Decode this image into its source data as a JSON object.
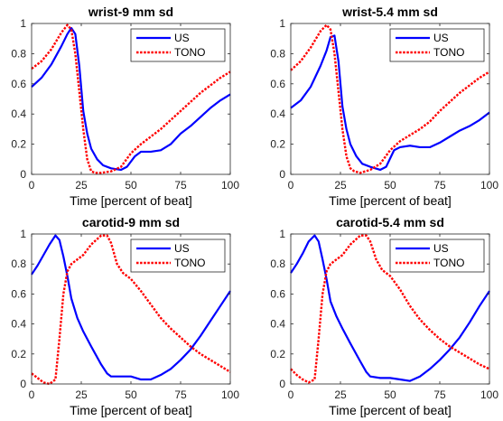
{
  "chart_data": [
    {
      "type": "line",
      "title": "wrist-9 mm sd",
      "xlabel": "Time [percent of beat]",
      "ylabel": "",
      "xlim": [
        0,
        100
      ],
      "ylim": [
        0,
        1
      ],
      "xticks": [
        "0",
        "25",
        "50",
        "75",
        "100"
      ],
      "yticks": [
        "0",
        "0.2",
        "0.4",
        "0.6",
        "0.8",
        "1"
      ],
      "legend_position": "top-right",
      "series": [
        {
          "name": "US",
          "color": "#0000ff",
          "style": "solid",
          "x": [
            0,
            5,
            10,
            15,
            18,
            20,
            22,
            24,
            26,
            28,
            30,
            33,
            36,
            40,
            45,
            48,
            52,
            55,
            60,
            65,
            70,
            75,
            80,
            85,
            90,
            95,
            100
          ],
          "y": [
            0.58,
            0.64,
            0.73,
            0.85,
            0.93,
            0.97,
            0.93,
            0.72,
            0.42,
            0.27,
            0.17,
            0.1,
            0.06,
            0.04,
            0.03,
            0.05,
            0.12,
            0.15,
            0.15,
            0.16,
            0.2,
            0.27,
            0.32,
            0.38,
            0.44,
            0.49,
            0.53
          ]
        },
        {
          "name": "TONO",
          "color": "#ff0000",
          "style": "dotted",
          "x": [
            0,
            5,
            10,
            15,
            18,
            20,
            22,
            24,
            26,
            28,
            30,
            32,
            35,
            40,
            45,
            50,
            55,
            60,
            65,
            70,
            75,
            80,
            85,
            90,
            95,
            100
          ],
          "y": [
            0.7,
            0.75,
            0.83,
            0.94,
            0.99,
            0.96,
            0.8,
            0.55,
            0.3,
            0.1,
            0.02,
            0.01,
            0.01,
            0.02,
            0.05,
            0.14,
            0.2,
            0.25,
            0.3,
            0.36,
            0.42,
            0.48,
            0.54,
            0.59,
            0.64,
            0.68
          ]
        }
      ]
    },
    {
      "type": "line",
      "title": "wrist-5.4 mm sd",
      "xlabel": "Time [percent of beat]",
      "ylabel": "",
      "xlim": [
        0,
        100
      ],
      "ylim": [
        0,
        1
      ],
      "xticks": [
        "0",
        "25",
        "50",
        "75",
        "100"
      ],
      "yticks": [
        "0",
        "0.2",
        "0.4",
        "0.6",
        "0.8",
        "1"
      ],
      "legend_position": "top-right",
      "series": [
        {
          "name": "US",
          "color": "#0000ff",
          "style": "solid",
          "x": [
            0,
            5,
            10,
            15,
            18,
            20,
            22,
            24,
            26,
            28,
            30,
            33,
            36,
            40,
            45,
            48,
            52,
            55,
            60,
            65,
            70,
            75,
            80,
            85,
            90,
            95,
            100
          ],
          "y": [
            0.44,
            0.49,
            0.58,
            0.72,
            0.82,
            0.91,
            0.92,
            0.75,
            0.45,
            0.3,
            0.2,
            0.12,
            0.07,
            0.05,
            0.03,
            0.05,
            0.16,
            0.18,
            0.19,
            0.18,
            0.18,
            0.21,
            0.25,
            0.29,
            0.32,
            0.36,
            0.41
          ]
        },
        {
          "name": "TONO",
          "color": "#ff0000",
          "style": "dotted",
          "x": [
            0,
            5,
            10,
            15,
            18,
            20,
            22,
            24,
            26,
            28,
            30,
            32,
            35,
            40,
            45,
            50,
            55,
            60,
            65,
            70,
            75,
            80,
            85,
            90,
            95,
            100
          ],
          "y": [
            0.69,
            0.75,
            0.84,
            0.95,
            0.99,
            0.96,
            0.8,
            0.55,
            0.3,
            0.12,
            0.04,
            0.02,
            0.01,
            0.03,
            0.07,
            0.16,
            0.22,
            0.26,
            0.3,
            0.35,
            0.42,
            0.48,
            0.54,
            0.59,
            0.64,
            0.68
          ]
        }
      ]
    },
    {
      "type": "line",
      "title": "carotid-9 mm sd",
      "xlabel": "Time [percent of beat]",
      "ylabel": "",
      "xlim": [
        0,
        100
      ],
      "ylim": [
        0,
        1
      ],
      "xticks": [
        "0",
        "25",
        "50",
        "75",
        "100"
      ],
      "yticks": [
        "0",
        "0.2",
        "0.4",
        "0.6",
        "0.8",
        "1"
      ],
      "legend_position": "top-right",
      "series": [
        {
          "name": "US",
          "color": "#0000ff",
          "style": "solid",
          "x": [
            0,
            3,
            6,
            9,
            12,
            14,
            16,
            18,
            20,
            23,
            26,
            30,
            35,
            38,
            40,
            45,
            50,
            55,
            60,
            65,
            70,
            75,
            80,
            85,
            90,
            95,
            100
          ],
          "y": [
            0.73,
            0.79,
            0.86,
            0.93,
            0.99,
            0.96,
            0.85,
            0.72,
            0.57,
            0.44,
            0.35,
            0.25,
            0.13,
            0.07,
            0.05,
            0.05,
            0.05,
            0.03,
            0.03,
            0.06,
            0.1,
            0.16,
            0.23,
            0.32,
            0.42,
            0.52,
            0.62
          ]
        },
        {
          "name": "TONO",
          "color": "#ff0000",
          "style": "dotted",
          "x": [
            0,
            3,
            6,
            9,
            12,
            14,
            16,
            18,
            20,
            23,
            26,
            30,
            35,
            38,
            40,
            43,
            46,
            50,
            55,
            60,
            65,
            70,
            75,
            80,
            85,
            90,
            95,
            100
          ],
          "y": [
            0.07,
            0.04,
            0.01,
            0.0,
            0.03,
            0.3,
            0.6,
            0.75,
            0.8,
            0.83,
            0.86,
            0.93,
            0.99,
            0.99,
            0.94,
            0.8,
            0.74,
            0.7,
            0.62,
            0.53,
            0.44,
            0.37,
            0.31,
            0.25,
            0.2,
            0.16,
            0.12,
            0.08
          ]
        }
      ]
    },
    {
      "type": "line",
      "title": "carotid-5.4 mm sd",
      "xlabel": "Time [percent of beat]",
      "ylabel": "",
      "xlim": [
        0,
        100
      ],
      "ylim": [
        0,
        1
      ],
      "xticks": [
        "0",
        "25",
        "50",
        "75",
        "100"
      ],
      "yticks": [
        "0",
        "0.2",
        "0.4",
        "0.6",
        "0.8",
        "1"
      ],
      "legend_position": "top-right",
      "series": [
        {
          "name": "US",
          "color": "#0000ff",
          "style": "solid",
          "x": [
            0,
            3,
            6,
            9,
            12,
            14,
            16,
            18,
            20,
            23,
            26,
            30,
            35,
            38,
            40,
            45,
            50,
            55,
            60,
            65,
            70,
            75,
            80,
            85,
            90,
            95,
            100
          ],
          "y": [
            0.74,
            0.8,
            0.87,
            0.95,
            0.99,
            0.95,
            0.83,
            0.7,
            0.55,
            0.45,
            0.37,
            0.27,
            0.15,
            0.08,
            0.05,
            0.04,
            0.04,
            0.03,
            0.02,
            0.05,
            0.1,
            0.16,
            0.23,
            0.31,
            0.41,
            0.52,
            0.62
          ]
        },
        {
          "name": "TONO",
          "color": "#ff0000",
          "style": "dotted",
          "x": [
            0,
            3,
            6,
            9,
            12,
            14,
            16,
            18,
            20,
            23,
            26,
            30,
            35,
            38,
            40,
            43,
            46,
            50,
            55,
            60,
            65,
            70,
            75,
            80,
            85,
            90,
            95,
            100
          ],
          "y": [
            0.1,
            0.06,
            0.03,
            0.01,
            0.03,
            0.3,
            0.6,
            0.75,
            0.8,
            0.83,
            0.86,
            0.93,
            0.99,
            0.99,
            0.95,
            0.83,
            0.76,
            0.72,
            0.63,
            0.52,
            0.43,
            0.36,
            0.3,
            0.25,
            0.21,
            0.17,
            0.13,
            0.1
          ]
        }
      ]
    }
  ]
}
